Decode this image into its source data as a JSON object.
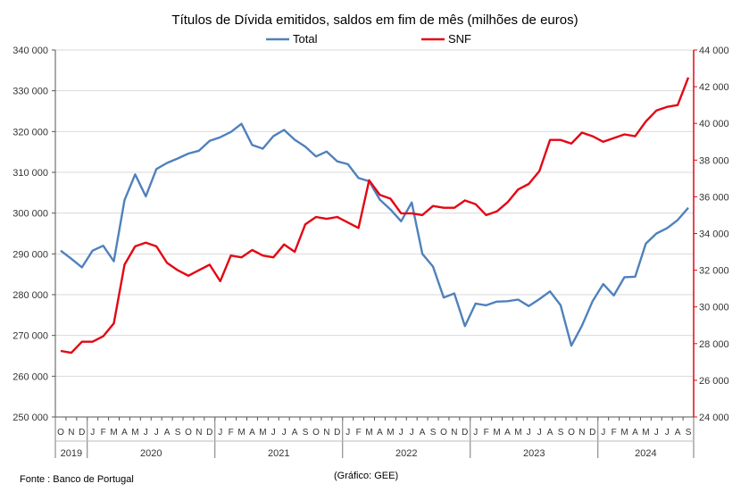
{
  "chart_data": {
    "type": "line",
    "title": "Títulos de Dívida emitidos, saldos em fim de mês  (milhões de euros)",
    "legend_position": "top",
    "grid": "horizontal",
    "y_left": {
      "ylim": [
        250000,
        340000
      ],
      "ticks": [
        250000,
        260000,
        270000,
        280000,
        290000,
        300000,
        310000,
        320000,
        330000,
        340000
      ],
      "tick_labels": [
        "250 000",
        "260 000",
        "270 000",
        "280 000",
        "290 000",
        "300 000",
        "310 000",
        "320 000",
        "330 000",
        "340 000"
      ]
    },
    "y_right": {
      "ylim": [
        24000,
        44000
      ],
      "ticks": [
        24000,
        26000,
        28000,
        30000,
        32000,
        34000,
        36000,
        38000,
        40000,
        42000,
        44000
      ],
      "tick_labels": [
        "24 000",
        "26 000",
        "28 000",
        "30 000",
        "32 000",
        "34 000",
        "36 000",
        "38 000",
        "40 000",
        "42 000",
        "44 000"
      ],
      "color": "#e30613"
    },
    "x_month_labels": [
      "O",
      "N",
      "D",
      "J",
      "F",
      "M",
      "A",
      "M",
      "J",
      "J",
      "A",
      "S",
      "O",
      "N",
      "D",
      "J",
      "F",
      "M",
      "A",
      "M",
      "J",
      "J",
      "A",
      "S",
      "O",
      "N",
      "D",
      "J",
      "F",
      "M",
      "A",
      "M",
      "J",
      "J",
      "A",
      "S",
      "O",
      "N",
      "D",
      "J",
      "F",
      "M",
      "A",
      "M",
      "J",
      "J",
      "A",
      "S",
      "O",
      "N",
      "D",
      "J",
      "F",
      "M",
      "A",
      "M",
      "J",
      "J",
      "A",
      "S"
    ],
    "x_year_groups": [
      {
        "label": "2019",
        "start": 0,
        "end": 2
      },
      {
        "label": "2020",
        "start": 3,
        "end": 14
      },
      {
        "label": "2021",
        "start": 15,
        "end": 26
      },
      {
        "label": "2022",
        "start": 27,
        "end": 38
      },
      {
        "label": "2023",
        "start": 39,
        "end": 50
      },
      {
        "label": "2024",
        "start": 51,
        "end": 59
      }
    ],
    "series": [
      {
        "name": "Total",
        "axis": "left",
        "color": "#4f81bd",
        "values": [
          290800,
          288800,
          286700,
          290800,
          292000,
          288200,
          303200,
          309500,
          304100,
          310800,
          312300,
          313400,
          314600,
          315300,
          317700,
          318600,
          319900,
          321900,
          316700,
          315800,
          318900,
          320400,
          318000,
          316300,
          313900,
          315100,
          312700,
          312000,
          308600,
          307800,
          303300,
          300900,
          298000,
          302600,
          290000,
          286900,
          279300,
          280300,
          272300,
          277800,
          277400,
          278300,
          278400,
          278800,
          277200,
          278900,
          280800,
          277400,
          267500,
          272400,
          278400,
          282600,
          279800,
          284300,
          284400,
          292500,
          295000,
          296300,
          298300,
          301300
        ]
      },
      {
        "name": "SNF",
        "axis": "right",
        "color": "#e30613",
        "values": [
          27600,
          27500,
          28100,
          28100,
          28400,
          29100,
          32300,
          33300,
          33500,
          33300,
          32400,
          32000,
          31700,
          32000,
          32300,
          31400,
          32800,
          32700,
          33100,
          32800,
          32700,
          33400,
          33000,
          34500,
          34900,
          34800,
          34900,
          34600,
          34300,
          36900,
          36100,
          35900,
          35100,
          35100,
          35000,
          35500,
          35400,
          35400,
          35800,
          35600,
          35000,
          35200,
          35700,
          36400,
          36700,
          37400,
          39100,
          39100,
          38900,
          39500,
          39300,
          39000,
          39200,
          39400,
          39300,
          40100,
          40700,
          40900,
          41000,
          42500
        ]
      }
    ]
  },
  "notes": {
    "source": "Fonte : Banco de Portugal",
    "credit": "(Gráfico: GEE)"
  }
}
